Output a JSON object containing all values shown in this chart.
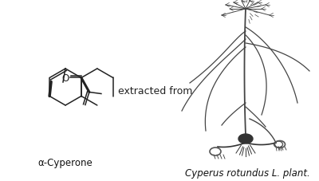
{
  "background_color": "#ffffff",
  "label_left": "α-Cyperone",
  "label_right": "Cyperus rotundus L. plant.",
  "middle_text": "extracted from",
  "label_fontsize": 8.5,
  "middle_fontsize": 9,
  "fig_width": 4.0,
  "fig_height": 2.28,
  "dpi": 100,
  "mol_color": "#222222",
  "plant_color": "#444444"
}
